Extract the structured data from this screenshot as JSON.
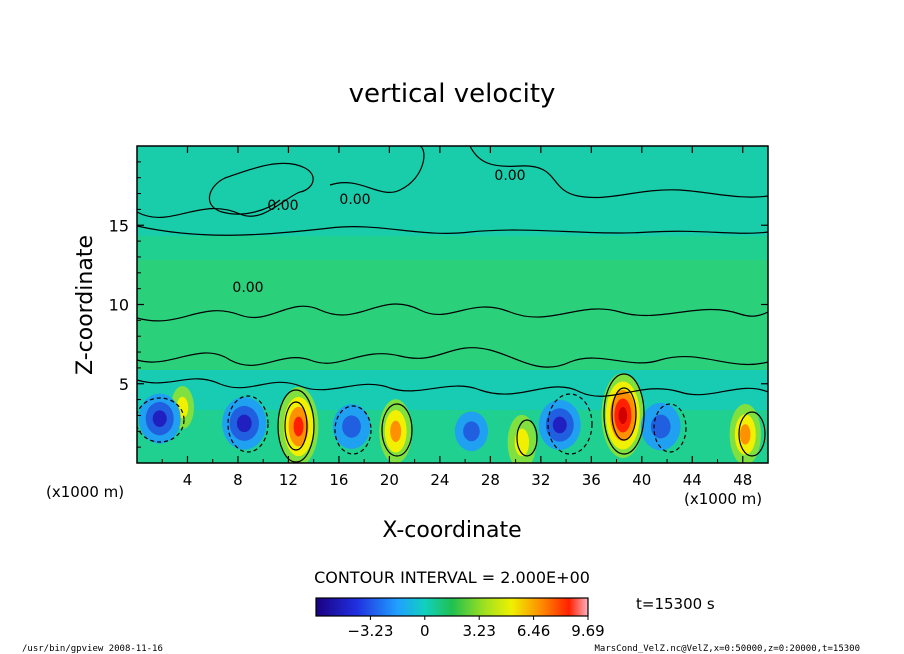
{
  "chart_data": {
    "type": "heatmap",
    "title": "vertical velocity",
    "xlabel": "X-coordinate",
    "ylabel": "Z-coordinate",
    "x_unit_left": "(x1000 m)",
    "x_unit_right": "(x1000 m)",
    "xlim": [
      0,
      50
    ],
    "ylim": [
      0,
      20
    ],
    "x_ticks": [
      4,
      8,
      12,
      16,
      20,
      24,
      28,
      32,
      36,
      40,
      44,
      48
    ],
    "y_ticks": [
      5,
      10,
      15
    ],
    "contour_label": "0.00",
    "contour_interval_text": "CONTOUR INTERVAL = 2.000E+00",
    "time_text": "t=15300 s",
    "colorbar": {
      "range": [
        -6.46,
        9.69
      ],
      "tick_values": [
        -3.23,
        0,
        3.23,
        6.46,
        9.69
      ],
      "tick_labels": [
        "−3.23",
        "0",
        "3.23",
        "6.46",
        "9.69"
      ]
    },
    "features": [
      {
        "kind": "updraft",
        "x": 12.8,
        "z": 2.3,
        "peak": 8.5
      },
      {
        "kind": "updraft",
        "x": 20.5,
        "z": 2.0,
        "peak": 6.0
      },
      {
        "kind": "updraft",
        "x": 30.5,
        "z": 1.3,
        "peak": 4.5
      },
      {
        "kind": "updraft",
        "x": 38.5,
        "z": 3.0,
        "peak": 9.5
      },
      {
        "kind": "updraft",
        "x": 48.2,
        "z": 1.8,
        "peak": 5.5
      },
      {
        "kind": "updraft",
        "x": 3.6,
        "z": 3.5,
        "peak": 2.5
      },
      {
        "kind": "downdraft",
        "x": 1.8,
        "z": 2.8,
        "peak": -5.0
      },
      {
        "kind": "downdraft",
        "x": 8.5,
        "z": 2.5,
        "peak": -5.5
      },
      {
        "kind": "downdraft",
        "x": 17.0,
        "z": 2.3,
        "peak": -4.0
      },
      {
        "kind": "downdraft",
        "x": 26.5,
        "z": 2.0,
        "peak": -3.0
      },
      {
        "kind": "downdraft",
        "x": 33.5,
        "z": 2.4,
        "peak": -5.0
      },
      {
        "kind": "downdraft",
        "x": 41.5,
        "z": 2.3,
        "peak": -4.5
      }
    ]
  },
  "footer": {
    "left": "/usr/bin/gpview   2008-11-16",
    "right": "MarsCond_VelZ.nc@VelZ,x=0:50000,z=0:20000,t=15300"
  }
}
